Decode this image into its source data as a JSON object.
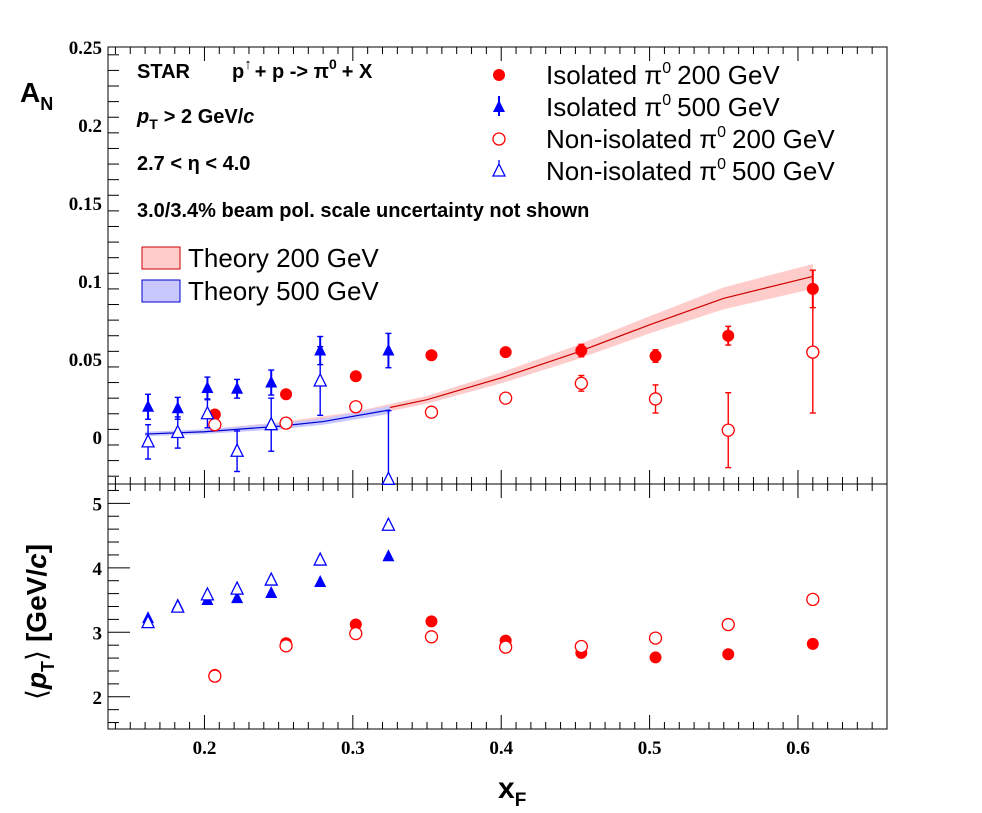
{
  "chart_data": [
    {
      "type": "scatter",
      "panel": "top",
      "ylabel_main": "A",
      "ylabel_sub": "N",
      "ylim": [
        -0.03,
        0.25
      ],
      "xlim": [
        0.135,
        0.66
      ],
      "yticks": [
        {
          "v": 0,
          "label": "0"
        },
        {
          "v": 0.05,
          "label": "0.05"
        },
        {
          "v": 0.1,
          "label": "0.1"
        },
        {
          "v": 0.15,
          "label": "0.15"
        },
        {
          "v": 0.2,
          "label": "0.2"
        },
        {
          "v": 0.25,
          "label": "0.25"
        }
      ],
      "annotations": {
        "star": "STAR",
        "reaction_p": "p",
        "reaction_arrow": "↑",
        "reaction_rest": "+ p -> π",
        "reaction_sup": "0",
        "reaction_end": "+ X",
        "pt_p": "p",
        "pt_sub": "T",
        "pt_rest": "> 2 GeV/",
        "pt_c": "c",
        "eta": "2.7 < η < 4.0",
        "pol": "3.0/3.4% beam pol. scale uncertainty not shown"
      },
      "legend": [
        {
          "key": "iso200",
          "pre": "Isolated π",
          "sup": "0",
          "post": "200 GeV",
          "marker": "filled-circle",
          "color": "#ff0000"
        },
        {
          "key": "iso500",
          "pre": "Isolated π",
          "sup": "0",
          "post": "500 GeV",
          "marker": "filled-triangle",
          "color": "#0000ff"
        },
        {
          "key": "non200",
          "pre": "Non-isolated π",
          "sup": "0",
          "post": "200 GeV",
          "marker": "open-circle",
          "color": "#ff0000"
        },
        {
          "key": "non500",
          "pre": "Non-isolated π",
          "sup": "0",
          "post": "500 GeV",
          "marker": "open-triangle",
          "color": "#0000ff"
        }
      ],
      "theory_legend": [
        {
          "key": "th200",
          "label": "Theory 200 GeV",
          "fill": "#ffcccc",
          "stroke": "#cc0000"
        },
        {
          "key": "th500",
          "label": "Theory 500 GeV",
          "fill": "#c8c8ff",
          "stroke": "#0000cc"
        }
      ],
      "series": [
        {
          "key": "iso200",
          "name": "Isolated π0 200 GeV",
          "x": [
            0.207,
            0.255,
            0.302,
            0.353,
            0.403,
            0.454,
            0.504,
            0.553,
            0.61
          ],
          "y": [
            0.0145,
            0.0275,
            0.039,
            0.0525,
            0.0545,
            0.0555,
            0.052,
            0.065,
            0.095
          ],
          "err": [
            0.0025,
            0.0025,
            0.002,
            0.002,
            0.002,
            0.004,
            0.004,
            0.006,
            0.012
          ]
        },
        {
          "key": "iso500",
          "name": "Isolated π0 500 GeV",
          "x": [
            0.162,
            0.182,
            0.202,
            0.222,
            0.245,
            0.278,
            0.324
          ],
          "y": [
            0.0195,
            0.0185,
            0.0315,
            0.031,
            0.035,
            0.0555,
            0.0555
          ],
          "err": [
            0.008,
            0.007,
            0.007,
            0.006,
            0.008,
            0.009,
            0.011
          ]
        },
        {
          "key": "non200",
          "name": "Non-isolated π0 200 GeV",
          "x": [
            0.207,
            0.255,
            0.302,
            0.353,
            0.403,
            0.454,
            0.504,
            0.553,
            0.61
          ],
          "y": [
            0.008,
            0.009,
            0.0195,
            0.016,
            0.025,
            0.0345,
            0.0245,
            0.0045,
            0.0545
          ],
          "err": [
            0.002,
            0.002,
            0.002,
            0.002,
            0.002,
            0.005,
            0.009,
            0.024,
            0.039
          ]
        },
        {
          "key": "non500",
          "name": "Non-isolated π0 500 GeV",
          "x": [
            0.162,
            0.182,
            0.202,
            0.222,
            0.245,
            0.278,
            0.324
          ],
          "y": [
            -0.003,
            0.003,
            0.015,
            -0.009,
            0.008,
            0.036,
            -0.027
          ],
          "err": [
            0.011,
            0.01,
            0.009,
            0.013,
            0.017,
            0.022,
            0.044
          ]
        }
      ],
      "theory": [
        {
          "key": "th200",
          "x": [
            0.16,
            0.2,
            0.25,
            0.3,
            0.35,
            0.4,
            0.45,
            0.5,
            0.55,
            0.61
          ],
          "y": [
            0.002,
            0.004,
            0.008,
            0.014,
            0.024,
            0.038,
            0.054,
            0.072,
            0.089,
            0.103
          ],
          "width": [
            0.001,
            0.001,
            0.0015,
            0.002,
            0.0025,
            0.0035,
            0.0045,
            0.0055,
            0.007,
            0.008
          ]
        },
        {
          "key": "th500",
          "x": [
            0.16,
            0.2,
            0.25,
            0.28,
            0.325
          ],
          "y": [
            0.002,
            0.0035,
            0.007,
            0.01,
            0.0175
          ],
          "width": [
            0.0015,
            0.0015,
            0.002,
            0.002,
            0.0025
          ]
        }
      ]
    },
    {
      "type": "scatter",
      "panel": "bottom",
      "ylabel_lang": "⟨",
      "ylabel_p": "p",
      "ylabel_sub": "T",
      "ylabel_rang": "⟩",
      "ylabel_unit": "[GeV/",
      "ylabel_c": "c",
      "ylabel_close": "]",
      "xlabel_main": "x",
      "xlabel_sub": "F",
      "ylim": [
        1.5,
        5.3
      ],
      "xlim": [
        0.135,
        0.66
      ],
      "yticks": [
        {
          "v": 2,
          "label": "2"
        },
        {
          "v": 3,
          "label": "3"
        },
        {
          "v": 4,
          "label": "4"
        },
        {
          "v": 5,
          "label": "5"
        }
      ],
      "xticks": [
        {
          "v": 0.2,
          "label": "0.2"
        },
        {
          "v": 0.3,
          "label": "0.3"
        },
        {
          "v": 0.4,
          "label": "0.4"
        },
        {
          "v": 0.5,
          "label": "0.5"
        },
        {
          "v": 0.6,
          "label": "0.6"
        }
      ],
      "series": [
        {
          "key": "iso200",
          "x": [
            0.207,
            0.255,
            0.302,
            0.353,
            0.403,
            0.454,
            0.504,
            0.553,
            0.61
          ],
          "y": [
            2.34,
            2.83,
            3.12,
            3.17,
            2.87,
            2.68,
            2.61,
            2.66,
            2.82
          ]
        },
        {
          "key": "iso500",
          "x": [
            0.162,
            0.182,
            0.202,
            0.222,
            0.245,
            0.278,
            0.324
          ],
          "y": [
            3.22,
            3.42,
            3.5,
            3.53,
            3.61,
            3.78,
            4.18
          ]
        },
        {
          "key": "non200",
          "x": [
            0.207,
            0.255,
            0.302,
            0.353,
            0.403,
            0.454,
            0.504,
            0.553,
            0.61
          ],
          "y": [
            2.32,
            2.79,
            2.98,
            2.93,
            2.77,
            2.78,
            2.91,
            3.12,
            3.51
          ]
        },
        {
          "key": "non500",
          "x": [
            0.162,
            0.182,
            0.202,
            0.222,
            0.245,
            0.278,
            0.324
          ],
          "y": [
            3.15,
            3.39,
            3.58,
            3.67,
            3.81,
            4.12,
            4.66
          ]
        }
      ]
    }
  ]
}
